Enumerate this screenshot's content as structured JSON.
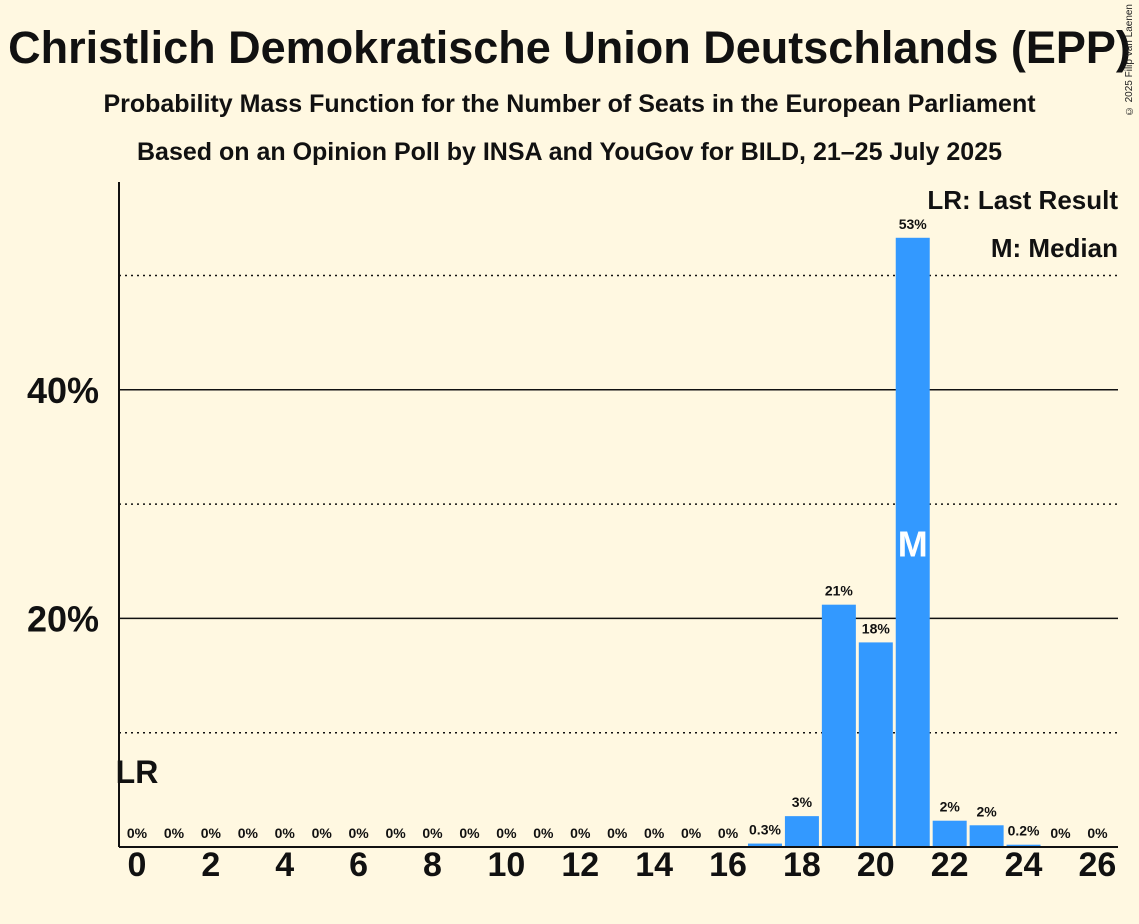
{
  "header": {
    "title": "Christlich Demokratische Union Deutschlands (EPP)",
    "subtitle": "Probability Mass Function for the Number of Seats in the European Parliament",
    "source_line": "Based on an Opinion Poll by INSA and YouGov for BILD, 21–25 July 2025",
    "copyright": "© 2025 Filip van Laenen"
  },
  "legend": {
    "last_result": "LR: Last Result",
    "median": "M: Median"
  },
  "colors": {
    "bar": "#3399ff",
    "background": "#fff8e1",
    "text": "#111111"
  },
  "chart_data": {
    "type": "bar",
    "title": "Christlich Demokratische Union Deutschlands (EPP)",
    "xlabel": "",
    "ylabel": "",
    "categories": [
      0,
      1,
      2,
      3,
      4,
      5,
      6,
      7,
      8,
      9,
      10,
      11,
      12,
      13,
      14,
      15,
      16,
      17,
      18,
      19,
      20,
      21,
      22,
      23,
      24,
      25,
      26
    ],
    "values": [
      0,
      0,
      0,
      0,
      0,
      0,
      0,
      0,
      0,
      0,
      0,
      0,
      0,
      0,
      0,
      0,
      0,
      0.3,
      2.7,
      21.2,
      17.9,
      53.3,
      2.3,
      1.9,
      0.2,
      0,
      0
    ],
    "value_labels": [
      "0%",
      "0%",
      "0%",
      "0%",
      "0%",
      "0%",
      "0%",
      "0%",
      "0%",
      "0%",
      "0%",
      "0%",
      "0%",
      "0%",
      "0%",
      "0%",
      "0%",
      "0.3%",
      "3%",
      "21%",
      "18%",
      "53%",
      "2%",
      "2%",
      "0.2%",
      "0%",
      "0%"
    ],
    "x_tick_labels": [
      "0",
      "2",
      "4",
      "6",
      "8",
      "10",
      "12",
      "14",
      "16",
      "18",
      "20",
      "22",
      "24",
      "26"
    ],
    "y_tick_labels": [
      "20%",
      "40%"
    ],
    "ylim": [
      0,
      58
    ],
    "gridlines_solid": [
      20,
      40
    ],
    "gridlines_dotted": [
      10,
      30,
      50
    ],
    "last_result_seat": 0,
    "last_result_label": "LR",
    "median_seat": 21,
    "median_label": "M"
  }
}
